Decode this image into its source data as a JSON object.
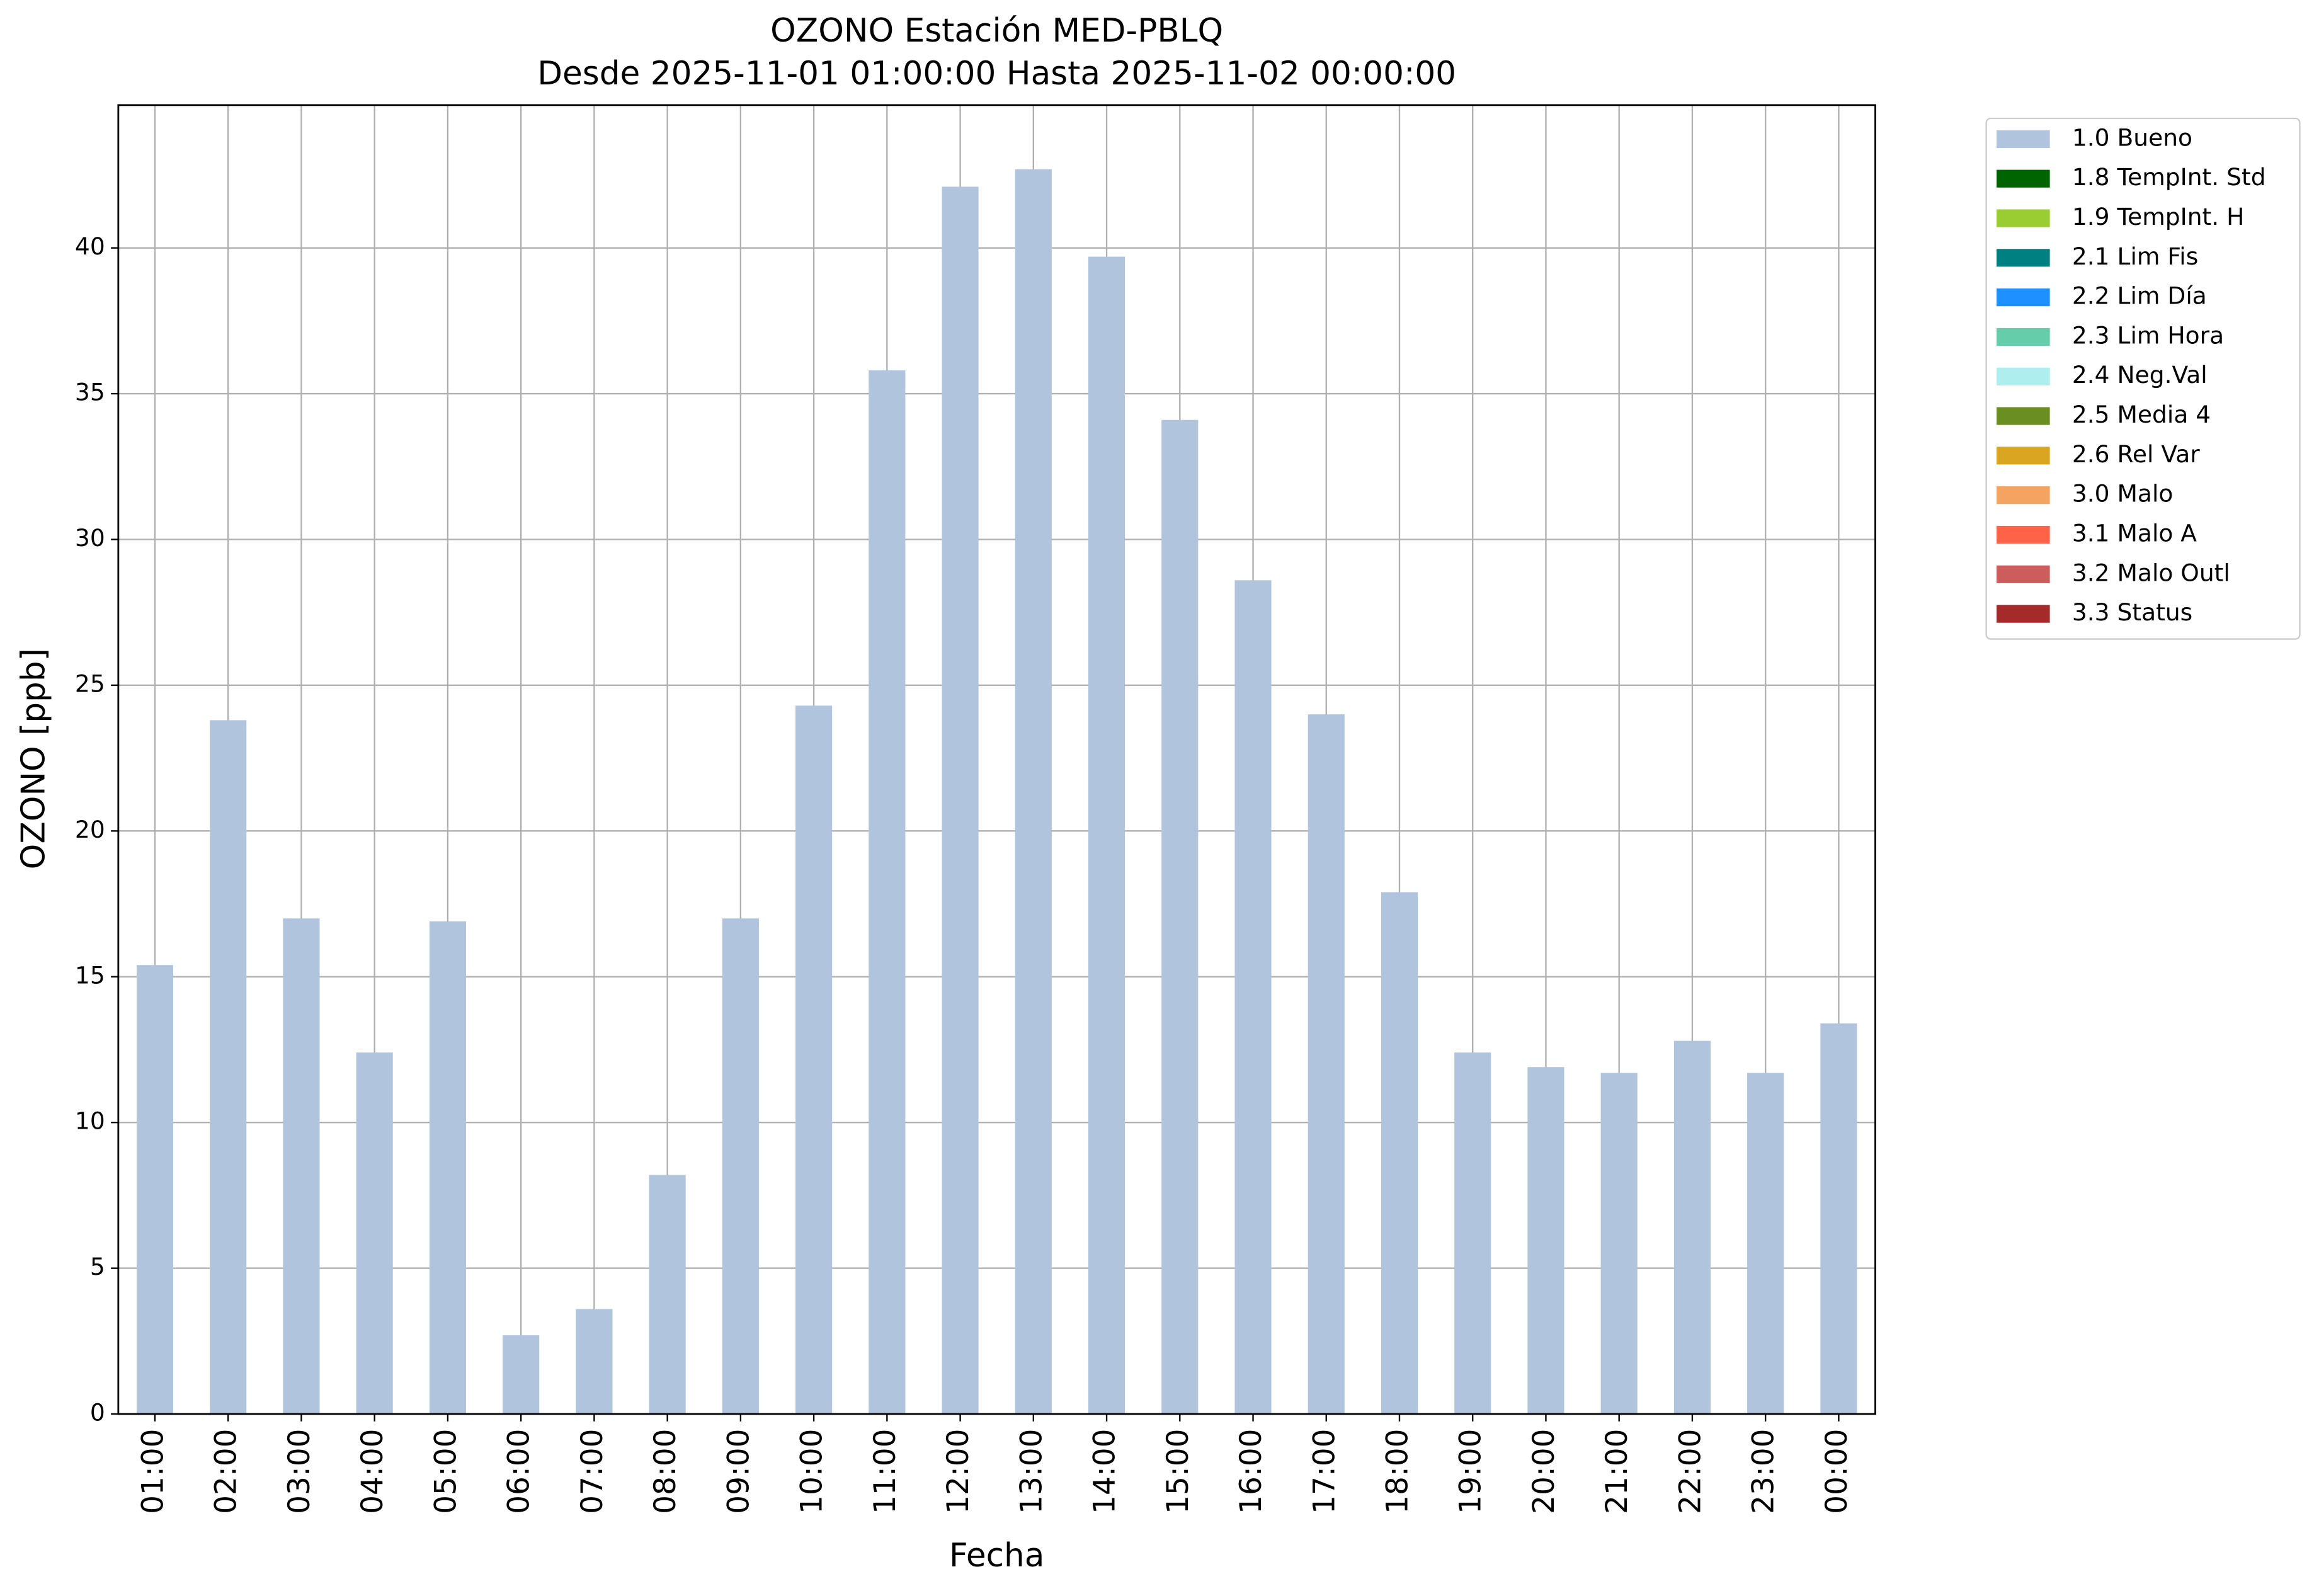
{
  "chart_data": {
    "type": "bar",
    "title": "OZONO Estación MED-PBLQ",
    "subtitle": "Desde 2025-11-01 01:00:00 Hasta 2025-11-02 00:00:00",
    "x_label": "Fecha",
    "y_label": "OZONO [ppb]",
    "categories": [
      "01:00",
      "02:00",
      "03:00",
      "04:00",
      "05:00",
      "06:00",
      "07:00",
      "08:00",
      "09:00",
      "10:00",
      "11:00",
      "12:00",
      "13:00",
      "14:00",
      "15:00",
      "16:00",
      "17:00",
      "18:00",
      "19:00",
      "20:00",
      "21:00",
      "22:00",
      "23:00",
      "00:00"
    ],
    "series": [
      {
        "name": "1.0 Bueno",
        "color": "#b0c4de",
        "values": [
          15.4,
          23.8,
          17.0,
          12.4,
          16.9,
          2.7,
          3.6,
          8.2,
          17.0,
          24.3,
          35.8,
          42.1,
          42.7,
          39.7,
          34.1,
          28.6,
          24.0,
          17.9,
          12.4,
          11.9,
          11.7,
          12.8,
          11.7,
          13.4
        ]
      },
      {
        "name": "1.8 TempInt. Std",
        "color": "#006400"
      },
      {
        "name": "1.9 TempInt. H",
        "color": "#9acd32"
      },
      {
        "name": "2.1 Lim Fis",
        "color": "#008080"
      },
      {
        "name": "2.2 Lim Día",
        "color": "#1e90ff"
      },
      {
        "name": "2.3 Lim Hora",
        "color": "#66cdaa"
      },
      {
        "name": "2.4 Neg.Val",
        "color": "#afeeee"
      },
      {
        "name": "2.5 Media 4",
        "color": "#6b8e23"
      },
      {
        "name": "2.6 Rel Var",
        "color": "#daa520"
      },
      {
        "name": "3.0 Malo",
        "color": "#f4a460"
      },
      {
        "name": "3.1 Malo A",
        "color": "#ff6347"
      },
      {
        "name": "3.2 Malo Outl",
        "color": "#cd5c5c"
      },
      {
        "name": "3.3 Status",
        "color": "#a52a2a"
      }
    ],
    "ylim": [
      0,
      44.9
    ],
    "yticks": [
      0,
      5,
      10,
      15,
      20,
      25,
      30,
      35,
      40
    ],
    "grid": true,
    "legend": "outside upper right"
  }
}
